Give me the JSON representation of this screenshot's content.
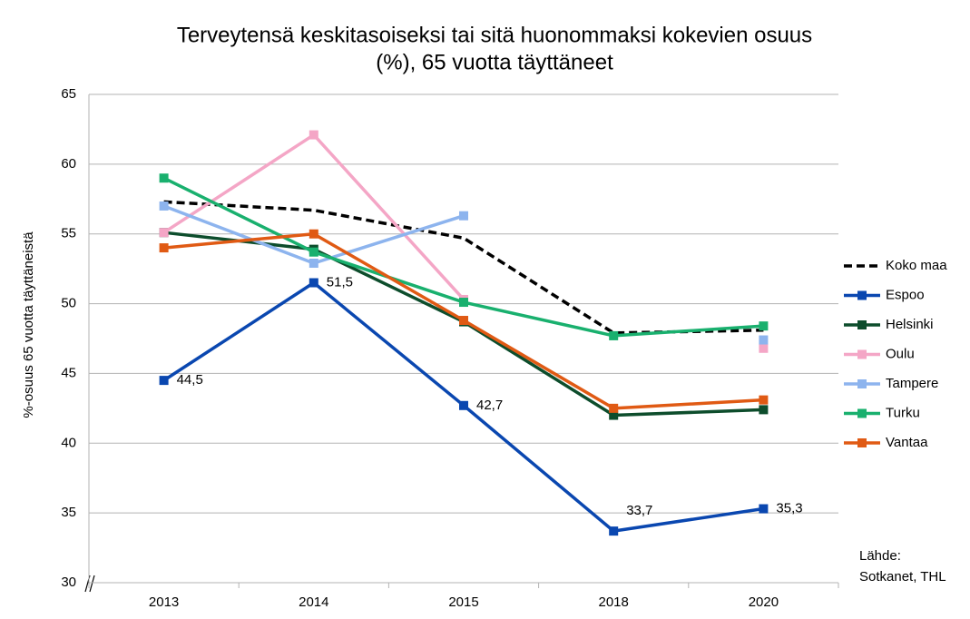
{
  "chart_data": {
    "type": "line",
    "title": [
      "Terveytensä keskitasoiseksi tai sitä huonommaksi kokevien osuus",
      "(%), 65 vuotta täyttäneet"
    ],
    "y_label": "%-osuus 65 vuotta täyttäneistä",
    "source": [
      "Lähde:",
      "Sotkanet, THL"
    ],
    "categories": [
      "2013",
      "2014",
      "2015",
      "2018",
      "2020"
    ],
    "ylim": [
      30,
      65
    ],
    "yticks": [
      30,
      35,
      40,
      45,
      50,
      55,
      60,
      65
    ],
    "grid": true,
    "legend": "right",
    "series": [
      {
        "name": "Koko maa",
        "color": "#000000",
        "dashed": true,
        "marker": false,
        "values": [
          57.3,
          56.7,
          54.7,
          47.9,
          48.1
        ]
      },
      {
        "name": "Espoo",
        "color": "#0a47b0",
        "values": [
          44.5,
          51.5,
          42.7,
          33.7,
          35.3
        ],
        "value_labels": [
          "44,5",
          "51,5",
          "42,7",
          "33,7",
          "35,3"
        ]
      },
      {
        "name": "Helsinki",
        "color": "#0d4d2c",
        "values": [
          55.1,
          53.9,
          48.7,
          42.0,
          42.4
        ]
      },
      {
        "name": "Oulu",
        "color": "#f4a6c6",
        "values": [
          55.1,
          62.1,
          50.3,
          null,
          46.8
        ]
      },
      {
        "name": "Tampere",
        "color": "#8db4ee",
        "values": [
          57.0,
          52.9,
          56.3,
          null,
          47.4
        ]
      },
      {
        "name": "Turku",
        "color": "#19b06e",
        "values": [
          59.0,
          53.7,
          50.1,
          47.7,
          48.4
        ]
      },
      {
        "name": "Vantaa",
        "color": "#e05a14",
        "values": [
          54.0,
          55.0,
          48.8,
          42.5,
          43.1
        ]
      }
    ]
  }
}
